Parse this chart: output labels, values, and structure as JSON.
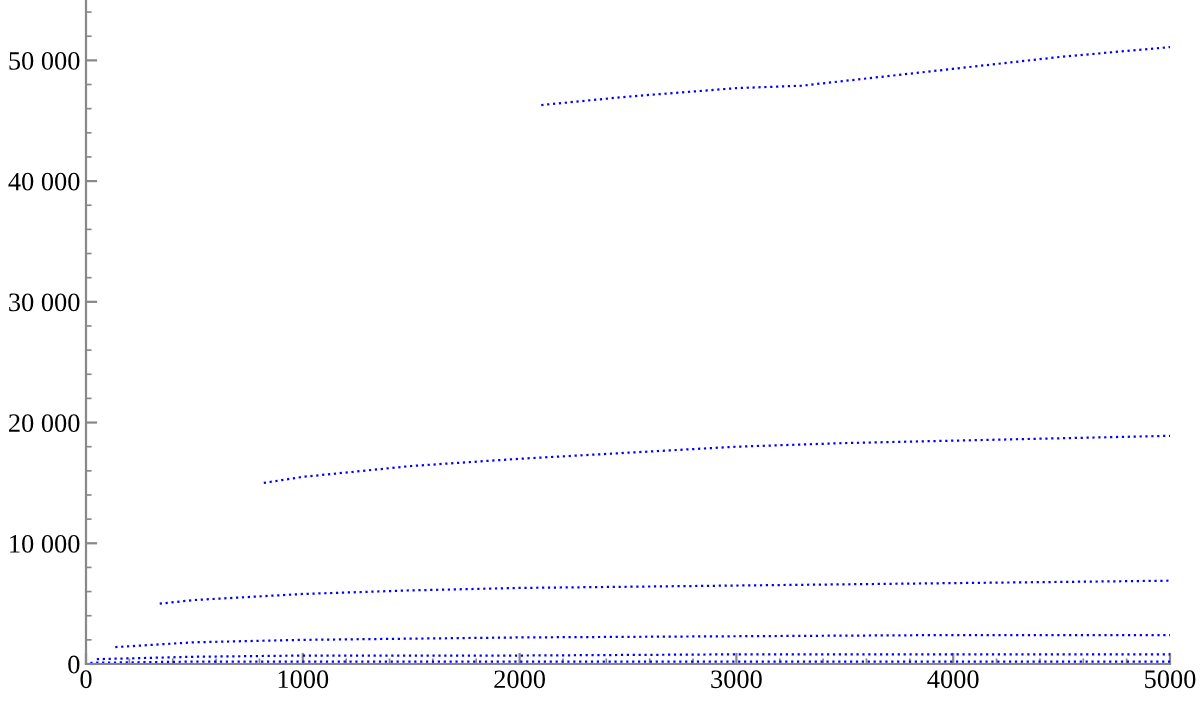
{
  "chart_data": {
    "type": "line",
    "series": [
      {
        "color": "#0000ff",
        "x": [
          2100,
          2500,
          3000,
          3300,
          3500,
          4000,
          4500,
          5000
        ],
        "values": [
          46300,
          47000,
          47700,
          47900,
          48300,
          49300,
          50300,
          51100
        ]
      },
      {
        "color": "#0000ff",
        "x": [
          820,
          1000,
          1500,
          2000,
          2500,
          2800,
          3000,
          3500,
          4000,
          4500,
          5000
        ],
        "values": [
          15000,
          15500,
          16400,
          17000,
          17500,
          17800,
          18000,
          18300,
          18500,
          18700,
          18900
        ]
      },
      {
        "color": "#0000ff",
        "x": [
          340,
          500,
          1000,
          1500,
          2000,
          3000,
          4000,
          5000
        ],
        "values": [
          5000,
          5300,
          5800,
          6100,
          6300,
          6500,
          6700,
          6900
        ]
      },
      {
        "color": "#0000ff",
        "x": [
          135,
          500,
          1000,
          2000,
          3000,
          4000,
          5000
        ],
        "values": [
          1400,
          1800,
          2000,
          2200,
          2300,
          2400,
          2400
        ]
      },
      {
        "color": "#0000ff",
        "x": [
          50,
          500,
          1000,
          2000,
          3000,
          4000,
          5000
        ],
        "values": [
          400,
          600,
          700,
          700,
          800,
          800,
          800
        ]
      },
      {
        "color": "#0000ff",
        "x": [
          20,
          500,
          1000,
          2000,
          3000,
          4000,
          5000
        ],
        "values": [
          100,
          200,
          200,
          200,
          200,
          200,
          200
        ]
      }
    ],
    "xlim": [
      0,
      5000
    ],
    "ylim": [
      0,
      55000
    ],
    "xticks": [
      0,
      1000,
      2000,
      3000,
      4000,
      5000
    ],
    "yticks": [
      0,
      {
        "value": 10000,
        "label": "10 000"
      },
      {
        "value": 20000,
        "label": "20 000"
      },
      {
        "value": 30000,
        "label": "30 000"
      },
      {
        "value": 40000,
        "label": "40 000"
      },
      {
        "value": 50000,
        "label": "50 000"
      }
    ],
    "grid": false,
    "legend": false,
    "marker": "none",
    "line_style": "dotted"
  }
}
